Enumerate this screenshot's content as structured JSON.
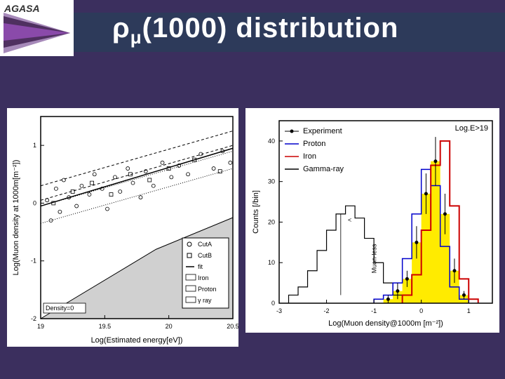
{
  "title_html": "ρ<sub>μ</sub>(1000) distribution",
  "logo_text": "AGASA",
  "colors": {
    "page_bg": "#3b2f5e",
    "band_bg": "#2d3a5a",
    "white": "#ffffff",
    "black": "#000000",
    "iron_red": "#cc0000",
    "proton_blue": "#0000cc",
    "yellow_fill": "#ffeb00",
    "gray_band": "#d0d0d0",
    "wedge_purple": "#6a3a8a",
    "wedge_dark": "#3a1a4a"
  },
  "left_chart": {
    "type": "scatter-with-bands",
    "xlabel": "Log(Estimated energy[eV])",
    "ylabel": "Log(Muon density at 1000m[m⁻²])",
    "xlim": [
      19,
      20.5
    ],
    "ylim": [
      -2,
      1.5
    ],
    "xticks": [
      19,
      19.5,
      20,
      20.5
    ],
    "yticks": [
      -2,
      -1,
      0,
      1
    ],
    "annotation": "Density=0",
    "legend": [
      {
        "marker": "circle-open",
        "label": "CutA"
      },
      {
        "marker": "square-open",
        "label": "CutB"
      },
      {
        "marker": "line",
        "label": "fit"
      },
      {
        "marker": "box",
        "label": "Iron"
      },
      {
        "marker": "box",
        "label": "Proton"
      },
      {
        "marker": "box",
        "label": "γ ray"
      }
    ],
    "fit_line": [
      [
        19,
        -0.05
      ],
      [
        20.5,
        0.95
      ]
    ],
    "iron_band_upper": [
      [
        19,
        0.3
      ],
      [
        20.5,
        1.25
      ]
    ],
    "iron_band_lower": [
      [
        19,
        0.05
      ],
      [
        20.5,
        1.0
      ]
    ],
    "proton_band_upper": [
      [
        19,
        -0.05
      ],
      [
        20.5,
        0.9
      ]
    ],
    "proton_band_lower": [
      [
        19,
        -0.35
      ],
      [
        20.5,
        0.6
      ]
    ],
    "gamma_upper": [
      [
        19,
        -2
      ],
      [
        19.9,
        -0.8
      ],
      [
        20.5,
        -0.25
      ]
    ],
    "points_cutA": [
      [
        19.05,
        0.05
      ],
      [
        19.08,
        -0.3
      ],
      [
        19.12,
        0.25
      ],
      [
        19.15,
        -0.15
      ],
      [
        19.18,
        0.4
      ],
      [
        19.22,
        0.1
      ],
      [
        19.28,
        -0.05
      ],
      [
        19.32,
        0.3
      ],
      [
        19.38,
        0.15
      ],
      [
        19.42,
        0.5
      ],
      [
        19.48,
        0.25
      ],
      [
        19.52,
        -0.1
      ],
      [
        19.58,
        0.45
      ],
      [
        19.62,
        0.2
      ],
      [
        19.68,
        0.6
      ],
      [
        19.72,
        0.35
      ],
      [
        19.78,
        0.1
      ],
      [
        19.82,
        0.55
      ],
      [
        19.88,
        0.3
      ],
      [
        19.95,
        0.7
      ],
      [
        20.02,
        0.45
      ],
      [
        20.08,
        0.65
      ],
      [
        20.15,
        0.5
      ],
      [
        20.25,
        0.85
      ],
      [
        20.35,
        0.6
      ],
      [
        20.42,
        0.9
      ],
      [
        20.48,
        0.7
      ]
    ],
    "points_cutB": [
      [
        19.1,
        0.0
      ],
      [
        19.25,
        0.2
      ],
      [
        19.4,
        0.35
      ],
      [
        19.55,
        0.15
      ],
      [
        19.7,
        0.5
      ],
      [
        19.85,
        0.4
      ],
      [
        20.0,
        0.6
      ],
      [
        20.2,
        0.75
      ],
      [
        20.4,
        0.55
      ]
    ]
  },
  "right_chart": {
    "type": "histogram",
    "xlabel": "Log(Muon density@1000m [m⁻²])",
    "ylabel": "Counts [/bin]",
    "xlim": [
      -3,
      1.5
    ],
    "ylim": [
      0,
      45
    ],
    "xticks": [
      -3,
      -2,
      -1,
      0,
      1
    ],
    "yticks": [
      0,
      10,
      20,
      30,
      40
    ],
    "title_inset": "Log.E>19",
    "inset_label": "Muon-less",
    "legend": [
      {
        "color": "#000000",
        "marker": "point",
        "label": "Experiment"
      },
      {
        "color": "#0000cc",
        "marker": "line",
        "label": "Proton"
      },
      {
        "color": "#cc0000",
        "marker": "line",
        "label": "Iron"
      },
      {
        "color": "#000000",
        "marker": "line",
        "label": "Gamma-ray"
      }
    ],
    "bin_width": 0.2,
    "histograms": {
      "experiment_bins": [
        [
          -0.7,
          1
        ],
        [
          -0.5,
          3
        ],
        [
          -0.3,
          6
        ],
        [
          -0.1,
          15
        ],
        [
          0.1,
          27
        ],
        [
          0.3,
          35
        ],
        [
          0.5,
          22
        ],
        [
          0.7,
          8
        ],
        [
          0.9,
          2
        ]
      ],
      "experiment_err": [
        1,
        2,
        2,
        4,
        5,
        6,
        5,
        3,
        1
      ],
      "proton_bins": [
        [
          -0.9,
          1
        ],
        [
          -0.7,
          2
        ],
        [
          -0.5,
          5
        ],
        [
          -0.3,
          11
        ],
        [
          -0.1,
          22
        ],
        [
          0.1,
          33
        ],
        [
          0.3,
          29
        ],
        [
          0.5,
          14
        ],
        [
          0.7,
          4
        ],
        [
          0.9,
          1
        ]
      ],
      "iron_bins": [
        [
          -0.3,
          2
        ],
        [
          -0.1,
          7
        ],
        [
          0.1,
          18
        ],
        [
          0.3,
          34
        ],
        [
          0.5,
          40
        ],
        [
          0.7,
          24
        ],
        [
          0.9,
          6
        ],
        [
          1.1,
          1
        ]
      ],
      "gamma_bins": [
        [
          -2.7,
          2
        ],
        [
          -2.5,
          4
        ],
        [
          -2.3,
          8
        ],
        [
          -2.1,
          13
        ],
        [
          -1.9,
          18
        ],
        [
          -1.7,
          22
        ],
        [
          -1.5,
          24
        ],
        [
          -1.3,
          21
        ],
        [
          -1.1,
          16
        ],
        [
          -0.9,
          10
        ],
        [
          -0.7,
          5
        ],
        [
          -0.5,
          2
        ]
      ]
    }
  }
}
